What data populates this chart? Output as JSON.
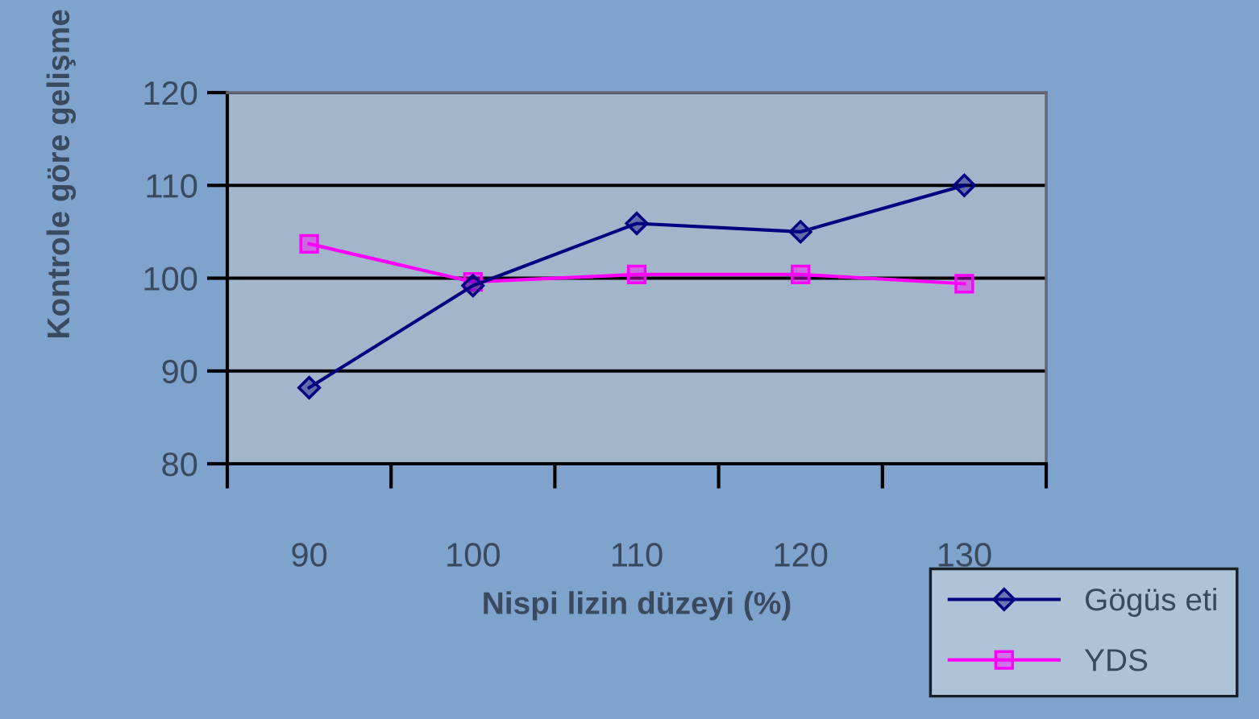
{
  "chart_data": {
    "type": "line",
    "xlabel": "Nispi lizin düzeyi (%)",
    "ylabel": "Kontrole göre gelişme",
    "categories": [
      "90",
      "100",
      "110",
      "120",
      "130"
    ],
    "series": [
      {
        "name": "Gögüs eti",
        "color": "#000080",
        "marker": "diamond",
        "values": [
          88.2,
          99.2,
          105.9,
          105.0,
          110.0
        ]
      },
      {
        "name": "YDS",
        "color": "#ff00ff",
        "marker": "square",
        "values": [
          103.7,
          99.6,
          100.4,
          100.4,
          99.4
        ]
      }
    ],
    "ylim": [
      80,
      120
    ],
    "yticks": [
      80,
      90,
      100,
      110,
      120
    ],
    "grid": "y",
    "legend": "bottom right",
    "line_style": "solid"
  }
}
